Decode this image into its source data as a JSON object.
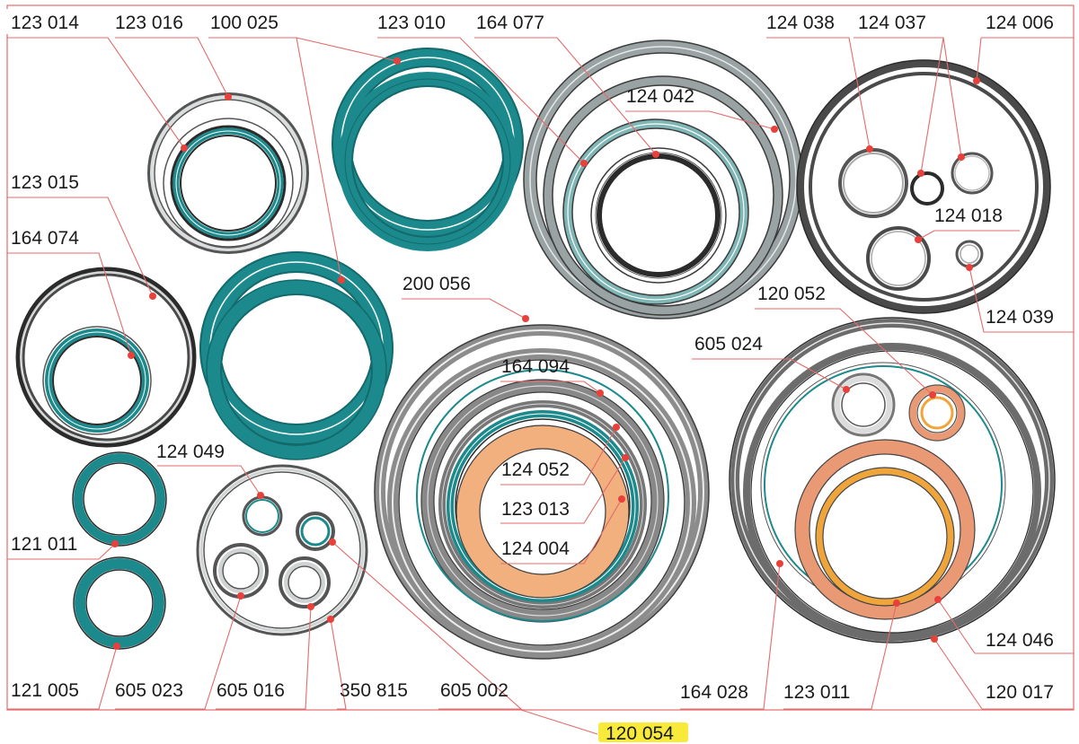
{
  "kit": {
    "part_number": "120 054",
    "highlight_color": "#f7ea3a"
  },
  "colors": {
    "teal": "#1c8a8c",
    "teal_dark": "#13696b",
    "grey": "#9aa3a3",
    "grey_dark": "#4a4a4a",
    "light_grey": "#cfd3d3",
    "black": "#2b2b2b",
    "peach": "#f2b07e",
    "salmon": "#e99a74",
    "orange": "#f0a53a",
    "leader": "#e36b6b"
  },
  "labels": {
    "l_123014": "123 014",
    "l_123016": "123 016",
    "l_100025": "100 025",
    "l_123010": "123 010",
    "l_164077": "164 077",
    "l_124038": "124 038",
    "l_124037": "124 037",
    "l_124006": "124 006",
    "l_124042": "124 042",
    "l_123015": "123 015",
    "l_164074": "164 074",
    "l_124018": "124 018",
    "l_200056": "200 056",
    "l_120052": "120 052",
    "l_124039": "124 039",
    "l_605024": "605 024",
    "l_164094": "164 094",
    "l_124049": "124 049",
    "l_124052": "124 052",
    "l_123013": "123 013",
    "l_124004": "124 004",
    "l_121011": "121 011",
    "l_124046": "124 046",
    "l_121005": "121 005",
    "l_605023": "605 023",
    "l_605016": "605 016",
    "l_350815": "350 815",
    "l_605002": "605 002",
    "l_164028": "164 028",
    "l_123011": "123 011",
    "l_120017": "120 017"
  }
}
